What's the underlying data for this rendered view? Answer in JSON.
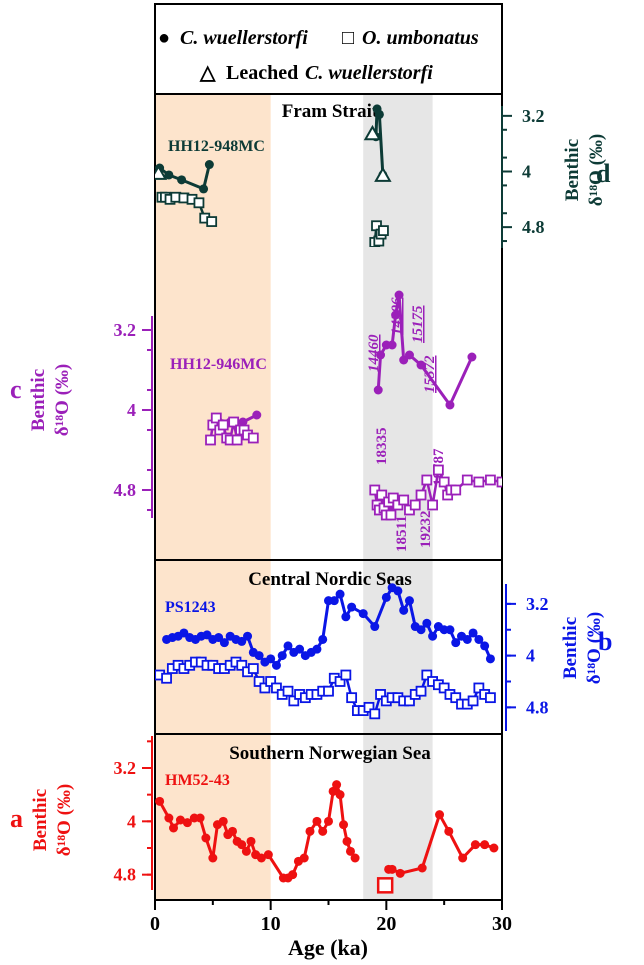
{
  "legend": {
    "c_wuellerstorfi_symbol": "●",
    "c_wuellerstorfi_label": "C. wuellerstorfi",
    "o_umbonatus_symbol": "□",
    "o_umbonatus_label": "O. umbonatus",
    "leached_symbol": "△",
    "leached_prefix": "Leached",
    "leached_species": "C. wuellerstorfi"
  },
  "xaxis": {
    "label": "Age (ka)",
    "ticks": [
      0,
      10,
      20,
      30
    ],
    "range": [
      0,
      30
    ]
  },
  "shading": {
    "holocene": {
      "from": 0,
      "to": 10,
      "color": "#fde4cc"
    },
    "lgm": {
      "from": 18,
      "to": 24,
      "color": "#e6e6e6"
    }
  },
  "y_label_line1": "Benthic",
  "y_label_line2": "δ¹⁸O (‰)",
  "chart_data": [
    {
      "id": "d",
      "type": "line",
      "letter": "d",
      "site_group": "Fram Strait",
      "core": "HH12-948MC",
      "color": "#0d3b36",
      "ylim": [
        5.1,
        2.9
      ],
      "ticks": [
        3.2,
        4,
        4.8
      ],
      "tick_labels": [
        "3.2",
        "4",
        "4.8"
      ],
      "series": [
        {
          "name": "C. wuellerstorfi",
          "segments": [
            {
              "x": [
                0.4,
                1.2,
                2.3,
                4.2,
                4.7
              ],
              "y": [
                3.95,
                4.05,
                4.12,
                4.25,
                3.9
              ]
            },
            {
              "x": [
                19.1,
                19.2,
                19.4,
                19.7
              ],
              "y": [
                3.5,
                3.1,
                3.18,
                4.05
              ]
            }
          ]
        },
        {
          "name": "O. umbonatus",
          "segments": [
            {
              "x": [
                0.6,
                0.9,
                1.3,
                1.8,
                2.5,
                3.2,
                3.8,
                4.3,
                4.9
              ],
              "y": [
                4.37,
                4.37,
                4.4,
                4.37,
                4.38,
                4.4,
                4.45,
                4.67,
                4.72
              ]
            },
            {
              "x": [
                19.0,
                19.15,
                19.35,
                19.55,
                19.75
              ],
              "y": [
                5.02,
                4.78,
                5.0,
                4.9,
                4.85
              ]
            }
          ]
        },
        {
          "name": "Leached C. wuellerstorfi",
          "segments": [
            {
              "x": [
                0.3
              ],
              "y": [
                4.03
              ]
            },
            {
              "x": [
                18.8,
                19.7
              ],
              "y": [
                3.46,
                4.06
              ]
            }
          ]
        }
      ]
    },
    {
      "id": "c",
      "type": "line",
      "letter": "c",
      "core": "HH12-946MC",
      "color": "#9b20b9",
      "ylim": [
        5.35,
        2.6
      ],
      "ticks": [
        3.2,
        4,
        4.8
      ],
      "tick_labels": [
        "3.2",
        "4",
        "4.8"
      ],
      "annotations_italic": [
        "14460",
        "14206",
        "15175",
        "15372"
      ],
      "annotations": [
        "18335",
        "18511",
        "19232",
        "18787"
      ],
      "series": [
        {
          "name": "C. wuellerstorfi",
          "segments": [
            {
              "x": [
                5.4,
                6.5,
                7.6,
                8.8
              ],
              "y": [
                4.1,
                4.12,
                4.12,
                4.05
              ]
            },
            {
              "x": [
                19.3,
                19.5,
                20.0,
                20.5,
                20.8,
                21.1,
                21.5,
                22.0,
                23.0,
                25.5,
                27.4
              ],
              "y": [
                3.8,
                3.45,
                3.35,
                3.35,
                3.05,
                2.85,
                3.5,
                3.45,
                3.55,
                3.95,
                3.47
              ]
            }
          ]
        },
        {
          "name": "O. umbonatus",
          "segments": [
            {
              "x": [
                4.8,
                5.0,
                5.3,
                5.6,
                5.9,
                6.2,
                6.5,
                6.8,
                7.1,
                7.4,
                7.7,
                8.0,
                8.5
              ],
              "y": [
                4.3,
                4.15,
                4.08,
                4.2,
                4.15,
                4.28,
                4.3,
                4.12,
                4.3,
                4.2,
                4.2,
                4.25,
                4.28
              ]
            },
            {
              "x": [
                19.0,
                19.2,
                19.4,
                19.6,
                19.8,
                20.0,
                20.2,
                20.4,
                20.6,
                21.0,
                21.5,
                22.0,
                22.5,
                23.0,
                23.5,
                24.0,
                24.5,
                25.0,
                25.3,
                25.6,
                26.0,
                27.0,
                28.0,
                29.0,
                30.0
              ],
              "y": [
                4.8,
                4.95,
                5.0,
                4.85,
                4.98,
                5.05,
                4.92,
                5.05,
                4.88,
                4.95,
                4.9,
                5.0,
                4.95,
                4.85,
                4.7,
                4.95,
                4.6,
                4.72,
                4.85,
                4.8,
                4.8,
                4.7,
                4.72,
                4.7,
                4.72
              ]
            }
          ]
        }
      ]
    },
    {
      "id": "b",
      "type": "line",
      "letter": "b",
      "site_group": "Central Nordic Seas",
      "core": "PS1243",
      "color": "#0a16e6",
      "ylim": [
        5.15,
        2.8
      ],
      "ticks": [
        3.2,
        4,
        4.8
      ],
      "tick_labels": [
        "3.2",
        "4",
        "4.8"
      ],
      "series": [
        {
          "name": "C. wuellerstorfi",
          "x": [
            1,
            1.5,
            2,
            2.5,
            3,
            3.5,
            4,
            4.5,
            5,
            5.5,
            6,
            6.5,
            7,
            7.5,
            8,
            8.5,
            9,
            9.5,
            10,
            10.5,
            11,
            11.5,
            12,
            12.5,
            13,
            13.5,
            14,
            14.5,
            15,
            15.5,
            16,
            16.5,
            17,
            18,
            19,
            20,
            20.5,
            21,
            21.5,
            22,
            22.5,
            23,
            23.5,
            24,
            24.5,
            25,
            25.5,
            26,
            26.5,
            27,
            27.5,
            28,
            28.5,
            29
          ],
          "y": [
            3.75,
            3.72,
            3.7,
            3.65,
            3.72,
            3.75,
            3.7,
            3.68,
            3.75,
            3.72,
            3.8,
            3.7,
            3.75,
            3.78,
            3.7,
            3.95,
            4.0,
            4.1,
            4.05,
            4.15,
            4.0,
            3.85,
            3.95,
            3.9,
            4.0,
            3.95,
            3.9,
            3.75,
            3.15,
            3.15,
            3.05,
            3.4,
            3.25,
            3.35,
            3.55,
            3.1,
            2.95,
            3.0,
            3.3,
            3.15,
            3.55,
            3.6,
            3.5,
            3.7,
            3.55,
            3.6,
            3.6,
            3.8,
            3.7,
            3.75,
            3.65,
            3.75,
            3.85,
            4.05
          ]
        },
        {
          "name": "O. umbonatus",
          "x": [
            0.4,
            1,
            1.5,
            2,
            2.5,
            3,
            3.5,
            4,
            4.5,
            5,
            5.5,
            6,
            6.5,
            7,
            7.5,
            8,
            8.5,
            9,
            9.5,
            10,
            10.5,
            11,
            11.5,
            12,
            12.5,
            13,
            13.5,
            14,
            14.5,
            15,
            15.5,
            16,
            16.5,
            17,
            17.5,
            18,
            18.5,
            19,
            19.5,
            20,
            20.5,
            21,
            21.5,
            22,
            22.5,
            23,
            23.5,
            24,
            24.5,
            25,
            25.5,
            26,
            26.5,
            27,
            27.5,
            28,
            28.5,
            29
          ],
          "y": [
            4.3,
            4.35,
            4.2,
            4.15,
            4.2,
            4.15,
            4.1,
            4.1,
            4.15,
            4.15,
            4.2,
            4.2,
            4.15,
            4.1,
            4.15,
            4.25,
            4.2,
            4.4,
            4.5,
            4.4,
            4.5,
            4.6,
            4.55,
            4.7,
            4.6,
            4.65,
            4.6,
            4.6,
            4.55,
            4.55,
            4.35,
            4.4,
            4.3,
            4.65,
            4.85,
            4.85,
            4.8,
            4.9,
            4.6,
            4.7,
            4.65,
            4.65,
            4.7,
            4.7,
            4.6,
            4.55,
            4.3,
            4.4,
            4.45,
            4.5,
            4.6,
            4.65,
            4.75,
            4.75,
            4.7,
            4.5,
            4.6,
            4.65
          ]
        }
      ]
    },
    {
      "id": "a",
      "type": "line",
      "letter": "a",
      "site_group": "Southern Norwegian Sea",
      "core": "HM52-43",
      "color": "#ee1111",
      "ylim": [
        5.15,
        2.75
      ],
      "ticks": [
        3.2,
        4,
        4.8
      ],
      "tick_labels": [
        "3.2",
        "4",
        "4.8"
      ],
      "series": [
        {
          "name": "C. wuellerstorfi",
          "segments": [
            {
              "x": [
                0.4,
                1.2,
                1.6,
                2.2,
                2.8,
                3.4,
                3.9,
                4.4,
                5.0,
                5.4,
                5.9,
                6.3,
                6.7,
                7.1,
                7.5,
                7.9,
                8.3,
                8.7,
                9.2,
                9.8,
                11.1,
                11.5,
                11.9,
                12.4,
                12.9,
                13.4,
                14.0,
                14.5,
                15.0,
                15.4,
                15.7,
                16.0,
                16.3,
                16.6,
                16.9,
                17.3
              ],
              "y": [
                3.7,
                3.95,
                4.1,
                3.98,
                4.02,
                3.95,
                3.95,
                4.25,
                4.55,
                4.05,
                4.0,
                4.2,
                4.15,
                4.3,
                4.35,
                4.45,
                4.3,
                4.5,
                4.55,
                4.5,
                4.85,
                4.85,
                4.8,
                4.6,
                4.55,
                4.15,
                4.0,
                4.15,
                4.0,
                3.55,
                3.45,
                3.6,
                4.05,
                4.3,
                4.45,
                4.55
              ]
            },
            {
              "x": [
                20.2,
                20.5,
                21.2,
                23.1,
                24.6,
                25.4,
                26.6,
                27.7,
                28.5,
                29.3
              ],
              "y": [
                4.72,
                4.72,
                4.78,
                4.7,
                3.9,
                4.15,
                4.55,
                4.35,
                4.35,
                4.4
              ]
            }
          ]
        },
        {
          "name": "O. umbonatus",
          "x": [
            19.9
          ],
          "y": [
            4.96
          ]
        }
      ]
    }
  ]
}
